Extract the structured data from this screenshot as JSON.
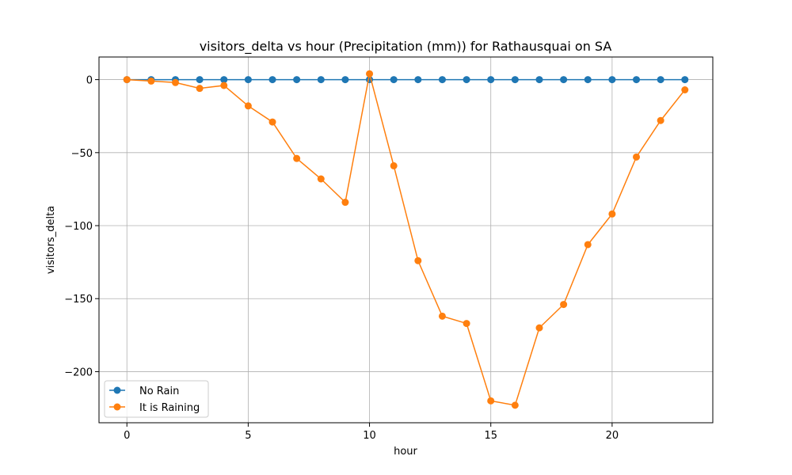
{
  "chart_data": {
    "type": "line",
    "title": "visitors_delta vs hour (Precipitation (mm)) for Rathausquai on SA",
    "xlabel": "hour",
    "ylabel": "visitors_delta",
    "xlim": [
      -1.15,
      24.15
    ],
    "ylim": [
      -235,
      15.5
    ],
    "xticks": [
      0,
      5,
      10,
      15,
      20
    ],
    "yticks": [
      0,
      -50,
      -100,
      -150,
      -200
    ],
    "ytick_labels": [
      "0",
      "−50",
      "−100",
      "−150",
      "−200"
    ],
    "grid": true,
    "legend_position": "lower-left",
    "x": [
      0,
      1,
      2,
      3,
      4,
      5,
      6,
      7,
      8,
      9,
      10,
      11,
      12,
      13,
      14,
      15,
      16,
      17,
      18,
      19,
      20,
      21,
      22,
      23
    ],
    "series": [
      {
        "name": "No Rain",
        "color": "#1f77b4",
        "values": [
          0,
          0,
          0,
          0,
          0,
          0,
          0,
          0,
          0,
          0,
          0,
          0,
          0,
          0,
          0,
          0,
          0,
          0,
          0,
          0,
          0,
          0,
          0,
          0
        ]
      },
      {
        "name": "It is Raining",
        "color": "#ff7f0e",
        "values": [
          0,
          -1,
          -2,
          -6,
          -4,
          -18,
          -29,
          -54,
          -68,
          -84,
          4,
          -59,
          -124,
          -162,
          -167,
          -220,
          -223,
          -170,
          -154,
          -113,
          -92,
          -53,
          -28,
          -7
        ]
      }
    ]
  }
}
